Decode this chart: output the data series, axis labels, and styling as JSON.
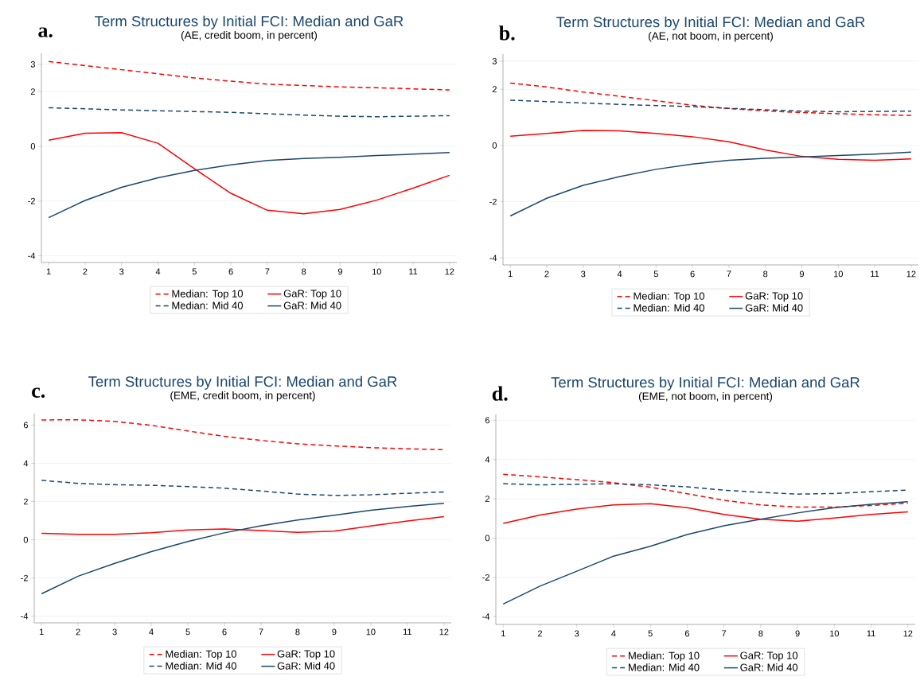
{
  "chart_data": [
    {
      "type": "line",
      "title": "Term Structures by Initial FCI: Median and GaR",
      "subtitle": "(AE, credit boom, in percent)",
      "annotations": [
        "a."
      ],
      "x": [
        1,
        2,
        3,
        4,
        5,
        6,
        7,
        8,
        9,
        10,
        11,
        12
      ],
      "xlim": [
        0.8,
        12.2
      ],
      "xticks": [
        1,
        2,
        3,
        4,
        5,
        6,
        7,
        8,
        9,
        10,
        11,
        12
      ],
      "ylim": [
        -4.25,
        3.4
      ],
      "yticks": [
        3,
        2,
        0,
        -2,
        -4
      ],
      "grid": "y",
      "legend": "bottom",
      "series": [
        {
          "name": "Median: Top 10",
          "color": "#ff0000",
          "line_style": "dashed",
          "values": [
            3.1,
            2.95,
            2.8,
            2.65,
            2.5,
            2.38,
            2.27,
            2.22,
            2.17,
            2.14,
            2.1,
            2.06
          ]
        },
        {
          "name": "GaR: Top 10",
          "color": "#ff0000",
          "line_style": "solid",
          "values": [
            0.22,
            0.48,
            0.5,
            0.11,
            -0.82,
            -1.72,
            -2.34,
            -2.47,
            -2.31,
            -1.97,
            -1.53,
            -1.06
          ]
        },
        {
          "name": "Median: Mid 40",
          "color": "#1a476f",
          "line_style": "dashed",
          "values": [
            1.41,
            1.37,
            1.33,
            1.3,
            1.27,
            1.24,
            1.19,
            1.14,
            1.1,
            1.08,
            1.1,
            1.12
          ]
        },
        {
          "name": "GaR: Mid 40",
          "color": "#1a476f",
          "line_style": "solid",
          "values": [
            -2.61,
            -1.98,
            -1.5,
            -1.15,
            -0.88,
            -0.68,
            -0.52,
            -0.45,
            -0.4,
            -0.34,
            -0.29,
            -0.23
          ]
        }
      ]
    },
    {
      "type": "line",
      "title": "Term Structures by Initial FCI: Median and GaR",
      "subtitle": "(AE, not boom, in percent)",
      "annotations": [
        "b."
      ],
      "x": [
        1,
        2,
        3,
        4,
        5,
        6,
        7,
        8,
        9,
        10,
        11,
        12
      ],
      "xlim": [
        0.8,
        12.2
      ],
      "xticks": [
        1,
        2,
        3,
        4,
        5,
        6,
        7,
        8,
        9,
        10,
        11,
        12
      ],
      "ylim": [
        -4.25,
        3.25
      ],
      "yticks": [
        3,
        2,
        0,
        -2,
        -4
      ],
      "grid": "y",
      "legend": "bottom",
      "series": [
        {
          "name": "Median: Top 10",
          "color": "#ff0000",
          "line_style": "dashed",
          "values": [
            2.22,
            2.08,
            1.9,
            1.75,
            1.59,
            1.43,
            1.31,
            1.23,
            1.17,
            1.13,
            1.09,
            1.07
          ]
        },
        {
          "name": "GaR: Top 10",
          "color": "#ff0000",
          "line_style": "solid",
          "values": [
            0.33,
            0.43,
            0.53,
            0.52,
            0.43,
            0.31,
            0.13,
            -0.16,
            -0.39,
            -0.49,
            -0.53,
            -0.48
          ]
        },
        {
          "name": "Median: Mid 40",
          "color": "#1a476f",
          "line_style": "dashed",
          "values": [
            1.61,
            1.56,
            1.51,
            1.46,
            1.42,
            1.38,
            1.32,
            1.27,
            1.22,
            1.2,
            1.21,
            1.22
          ]
        },
        {
          "name": "GaR: Mid 40",
          "color": "#1a476f",
          "line_style": "solid",
          "values": [
            -2.51,
            -1.88,
            -1.42,
            -1.11,
            -0.85,
            -0.66,
            -0.53,
            -0.46,
            -0.41,
            -0.36,
            -0.31,
            -0.24
          ]
        }
      ]
    },
    {
      "type": "line",
      "title": "Term Structures by Initial FCI: Median and GaR",
      "subtitle": "(EME, credit boom, in percent)",
      "annotations": [
        "c."
      ],
      "x": [
        1,
        2,
        3,
        4,
        5,
        6,
        7,
        8,
        9,
        10,
        11,
        12
      ],
      "xlim": [
        0.8,
        12.2
      ],
      "xticks": [
        1,
        2,
        3,
        4,
        5,
        6,
        7,
        8,
        9,
        10,
        11,
        12
      ],
      "ylim": [
        -4.35,
        6.6
      ],
      "yticks": [
        6,
        4,
        2,
        0,
        -2,
        -4
      ],
      "grid": "y",
      "legend": "bottom",
      "series": [
        {
          "name": "Median: Top 10",
          "color": "#ff0000",
          "line_style": "dashed",
          "values": [
            6.27,
            6.28,
            6.19,
            5.99,
            5.69,
            5.41,
            5.2,
            5.02,
            4.91,
            4.82,
            4.76,
            4.71
          ]
        },
        {
          "name": "GaR: Top 10",
          "color": "#ff0000",
          "line_style": "solid",
          "values": [
            0.33,
            0.28,
            0.28,
            0.37,
            0.51,
            0.56,
            0.48,
            0.39,
            0.45,
            0.72,
            0.98,
            1.21
          ]
        },
        {
          "name": "Median: Mid 40",
          "color": "#1a476f",
          "line_style": "dashed",
          "values": [
            3.11,
            2.95,
            2.88,
            2.85,
            2.78,
            2.7,
            2.55,
            2.39,
            2.32,
            2.35,
            2.43,
            2.5
          ]
        },
        {
          "name": "GaR: Mid 40",
          "color": "#1a476f",
          "line_style": "solid",
          "values": [
            -2.83,
            -1.91,
            -1.24,
            -0.62,
            -0.09,
            0.36,
            0.73,
            1.03,
            1.28,
            1.54,
            1.74,
            1.91
          ]
        }
      ]
    },
    {
      "type": "line",
      "title": "Term Structures by Initial FCI: Median and GaR",
      "subtitle": "(EME, not boom, in percent)",
      "annotations": [
        "d."
      ],
      "x": [
        1,
        2,
        3,
        4,
        5,
        6,
        7,
        8,
        9,
        10,
        11,
        12
      ],
      "xlim": [
        0.8,
        12.2
      ],
      "xticks": [
        1,
        2,
        3,
        4,
        5,
        6,
        7,
        8,
        9,
        10,
        11,
        12
      ],
      "ylim": [
        -4.4,
        6.3
      ],
      "yticks": [
        6,
        4,
        2,
        0,
        -2,
        -4
      ],
      "grid": "y",
      "legend": "bottom",
      "series": [
        {
          "name": "Median: Top 10",
          "color": "#ff0000",
          "line_style": "dashed",
          "values": [
            3.25,
            3.12,
            2.98,
            2.82,
            2.59,
            2.26,
            1.93,
            1.69,
            1.58,
            1.58,
            1.66,
            1.78
          ]
        },
        {
          "name": "GaR: Top 10",
          "color": "#ff0000",
          "line_style": "solid",
          "values": [
            0.75,
            1.17,
            1.48,
            1.69,
            1.75,
            1.55,
            1.2,
            0.96,
            0.86,
            1.02,
            1.2,
            1.34
          ]
        },
        {
          "name": "Median: Mid 40",
          "color": "#1a476f",
          "line_style": "dashed",
          "values": [
            2.77,
            2.71,
            2.74,
            2.77,
            2.71,
            2.61,
            2.44,
            2.33,
            2.24,
            2.27,
            2.36,
            2.45
          ]
        },
        {
          "name": "GaR: Mid 40",
          "color": "#1a476f",
          "line_style": "solid",
          "values": [
            -3.36,
            -2.45,
            -1.69,
            -0.92,
            -0.42,
            0.18,
            0.63,
            0.96,
            1.28,
            1.55,
            1.72,
            1.85
          ]
        }
      ]
    }
  ]
}
